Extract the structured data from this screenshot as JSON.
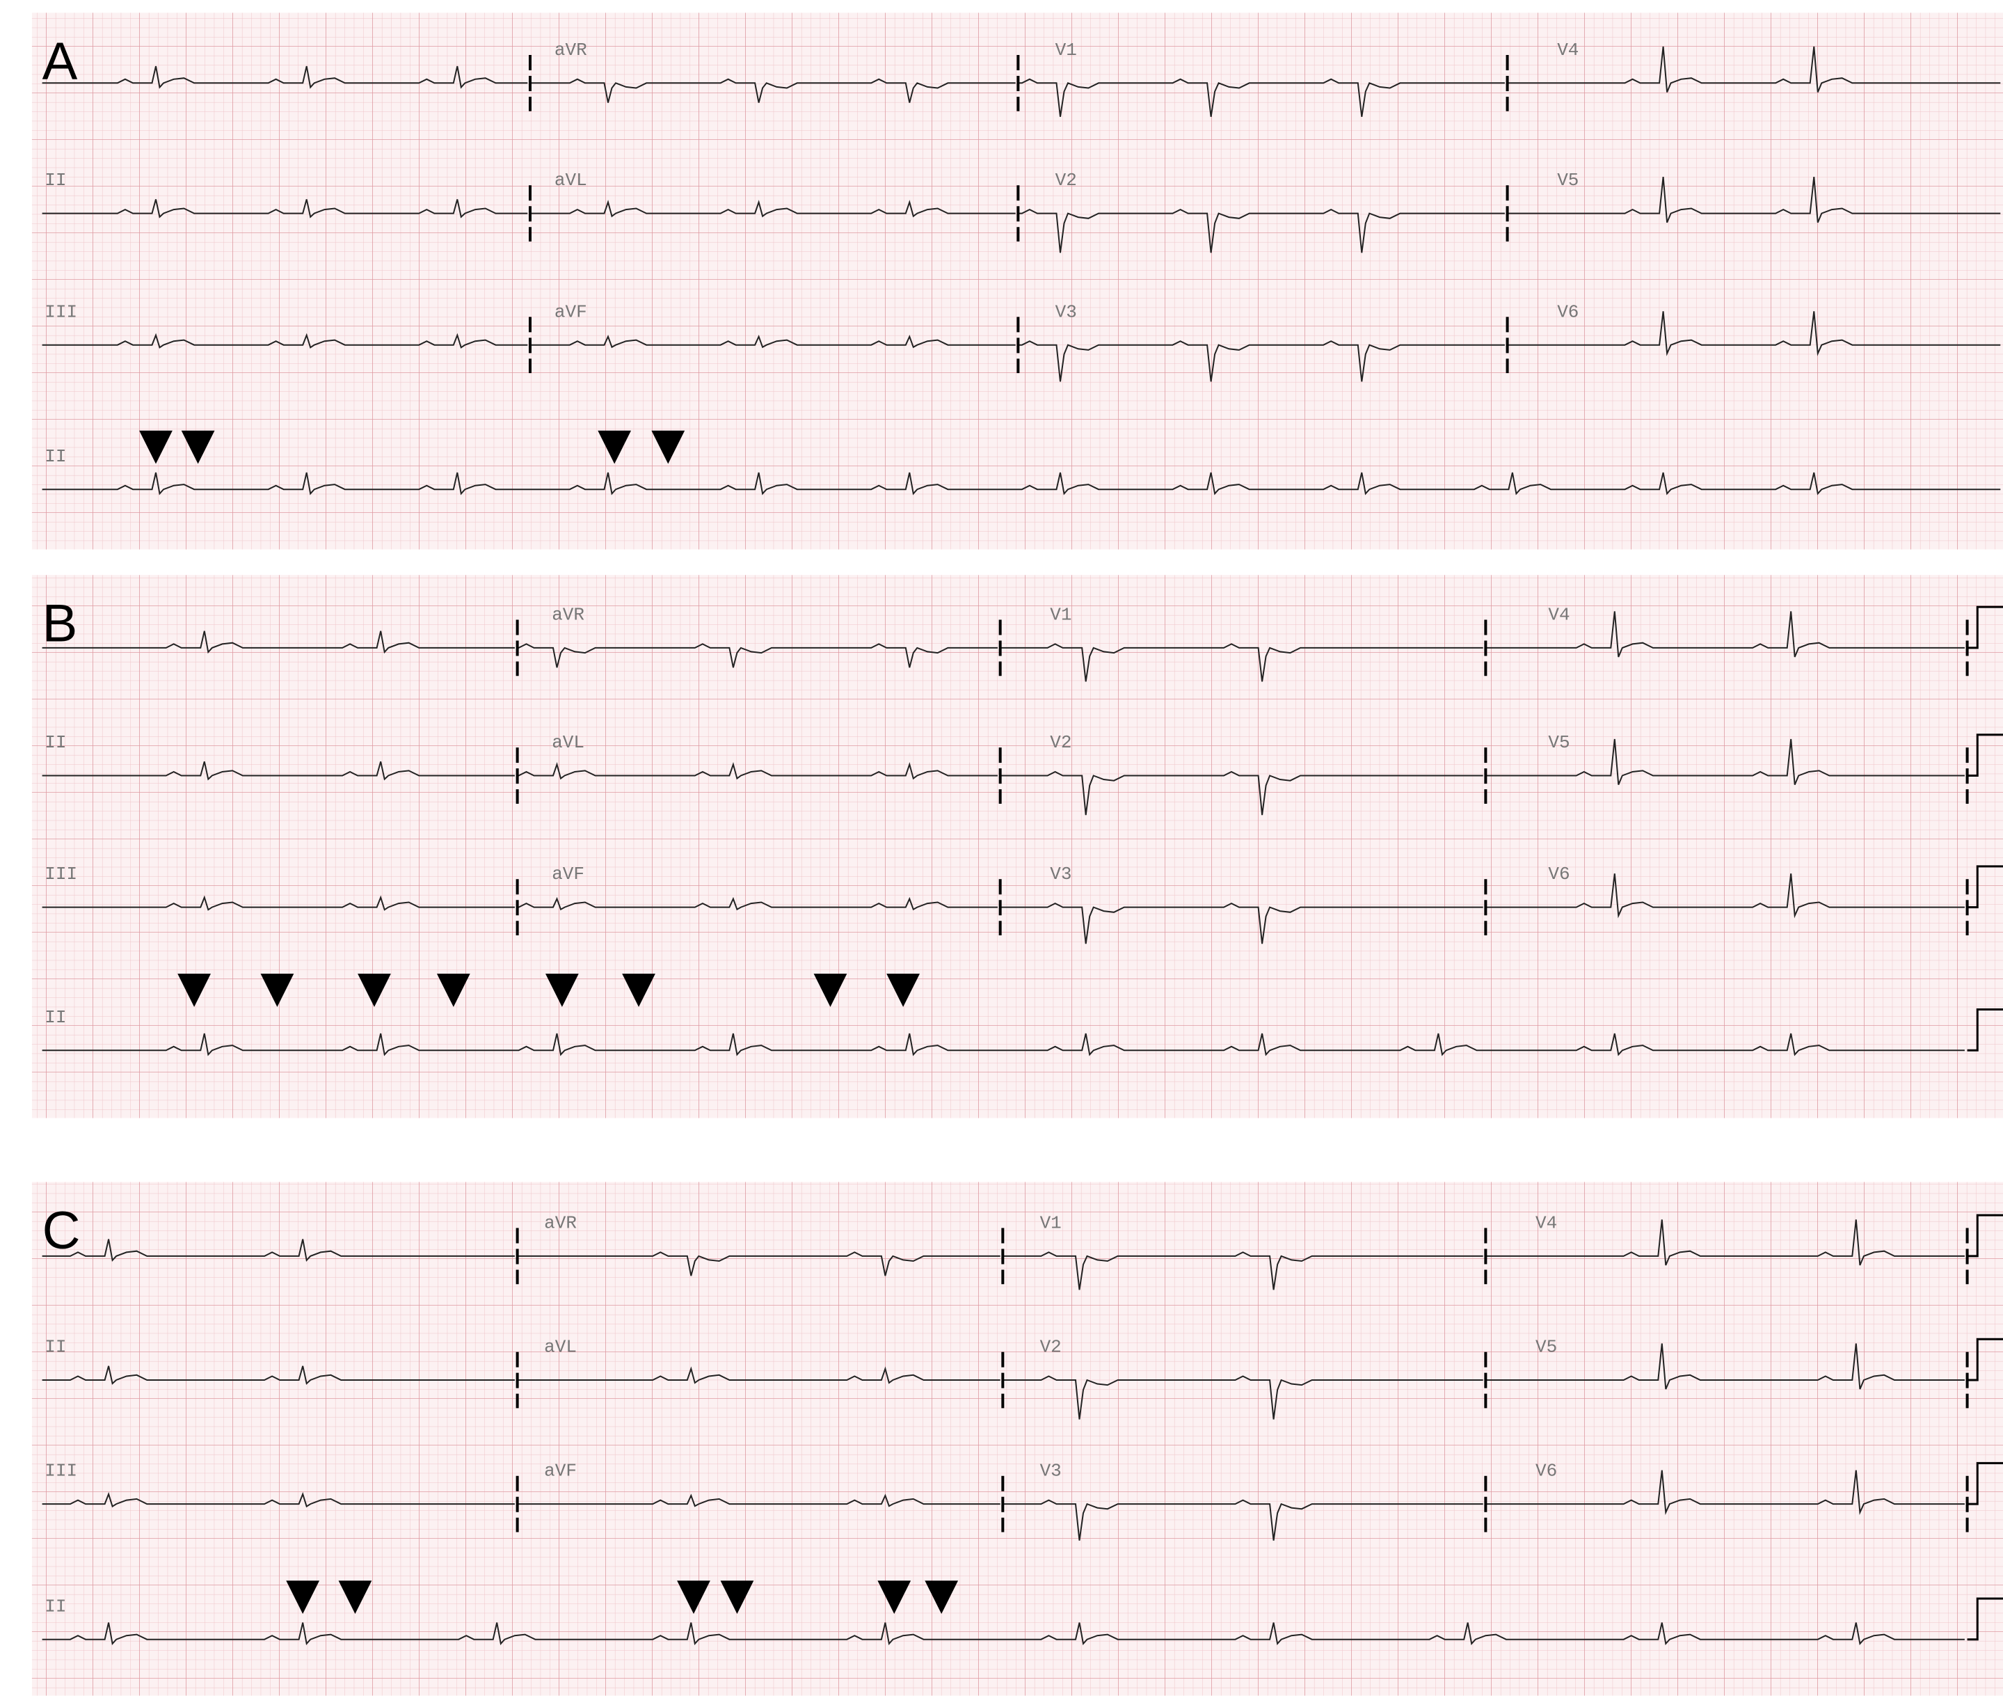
{
  "panels": [
    {
      "label": "A",
      "leads": [
        [
          null,
          "aVR",
          "V1",
          "V4"
        ],
        [
          "II",
          "aVL",
          "V2",
          "V5"
        ],
        [
          "III",
          "aVF",
          "V3",
          "V6"
        ],
        [
          "II"
        ]
      ]
    },
    {
      "label": "B",
      "leads": [
        [
          null,
          "aVR",
          "V1",
          "V4"
        ],
        [
          "II",
          "aVL",
          "V2",
          "V5"
        ],
        [
          "III",
          "aVF",
          "V3",
          "V6"
        ],
        [
          "II"
        ]
      ]
    },
    {
      "label": "C",
      "leads": [
        [
          null,
          "aVR",
          "V1",
          "V4"
        ],
        [
          "II",
          "aVL",
          "V2",
          "V5"
        ],
        [
          "III",
          "aVF",
          "V3",
          "V6"
        ],
        [
          "II"
        ]
      ]
    }
  ]
}
